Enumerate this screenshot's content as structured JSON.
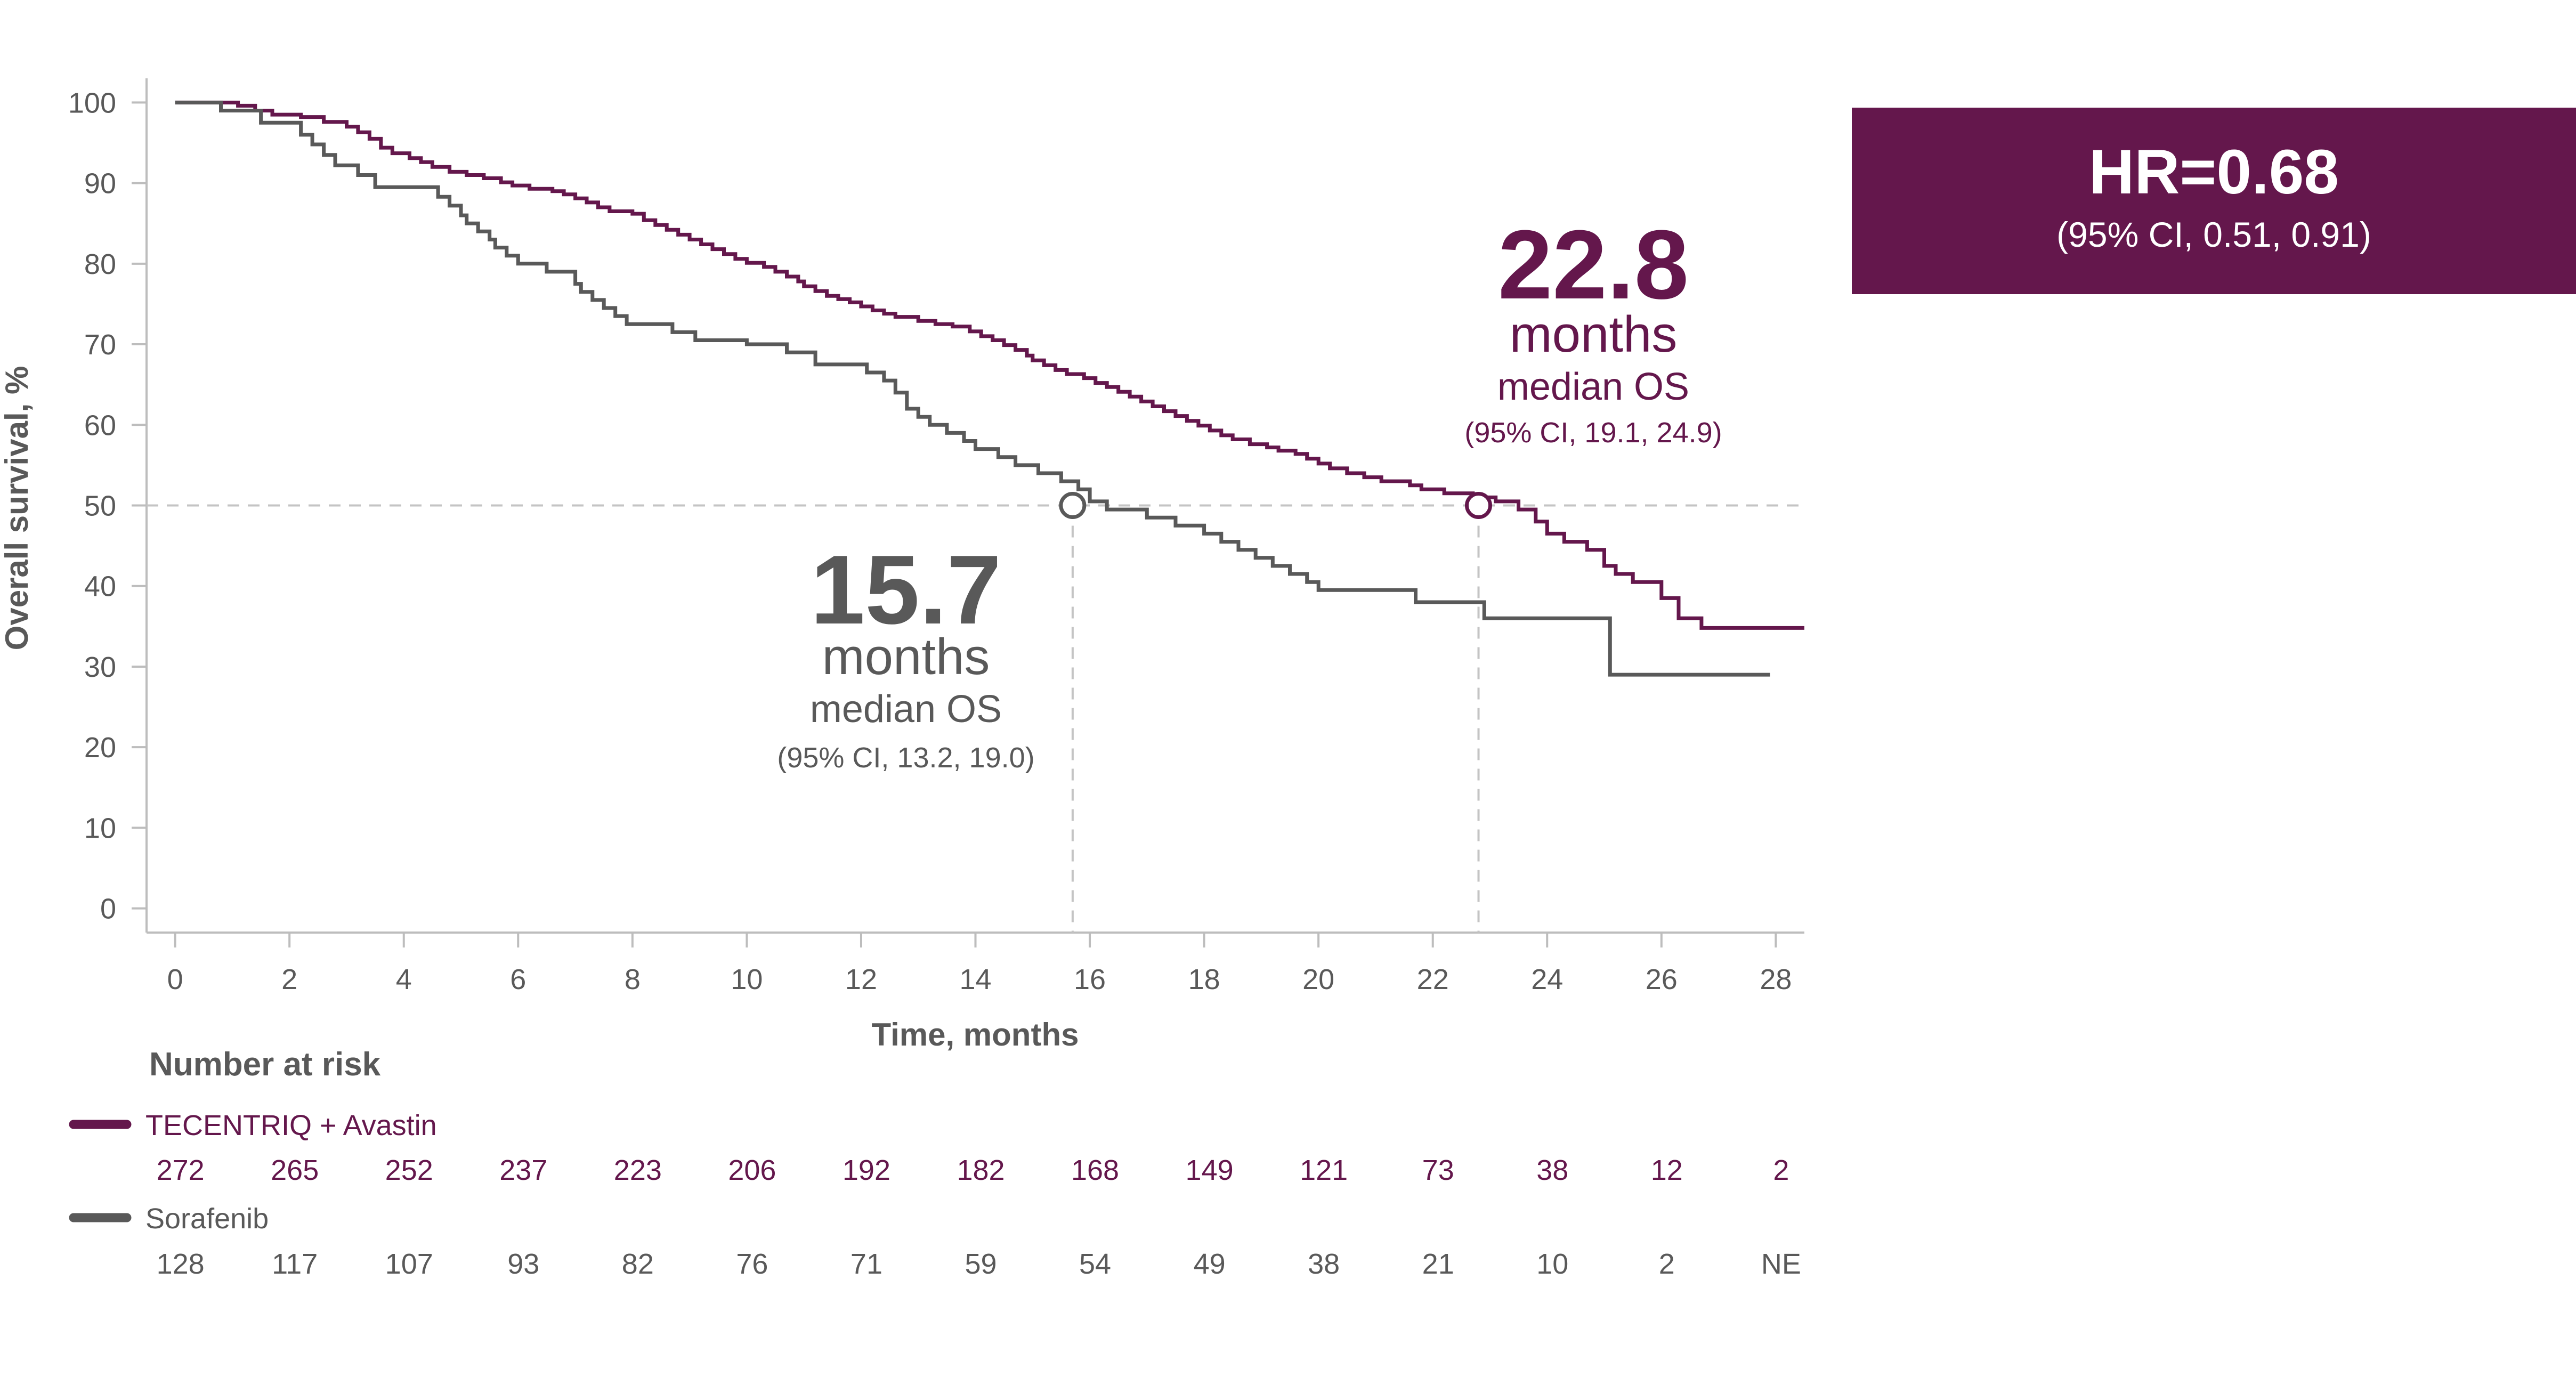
{
  "colors": {
    "tecentriq": "#64174c",
    "sorafenib": "#595959",
    "axis": "#bdbdbd",
    "tick_text": "#595959",
    "guide": "#c4c4c4"
  },
  "hr_box": {
    "value": "HR=0.68",
    "ci": "(95% CI, 0.51, 0.91)"
  },
  "chart_data": {
    "type": "line",
    "subtype": "kaplan-meier step",
    "xlabel": "Time, months",
    "ylabel": "Overall survival, %",
    "xlim": [
      -0.5,
      28.5
    ],
    "ylim": [
      -3,
      103
    ],
    "xticks": [
      0,
      2,
      4,
      6,
      8,
      10,
      12,
      14,
      16,
      18,
      20,
      22,
      24,
      26,
      28
    ],
    "yticks": [
      0,
      10,
      20,
      30,
      40,
      50,
      60,
      70,
      80,
      90,
      100
    ],
    "grid": false,
    "median_reference_line": 50,
    "series": [
      {
        "name": "TECENTRIQ + Avastin",
        "color": "#64174c",
        "points": [
          [
            0,
            100
          ],
          [
            0.7,
            100
          ],
          [
            1.1,
            99.6
          ],
          [
            1.4,
            99
          ],
          [
            1.7,
            98.5
          ],
          [
            2.2,
            98.2
          ],
          [
            2.6,
            97.6
          ],
          [
            3.0,
            97
          ],
          [
            3.2,
            96.3
          ],
          [
            3.4,
            95.5
          ],
          [
            3.6,
            94.4
          ],
          [
            3.8,
            93.7
          ],
          [
            4.1,
            93.1
          ],
          [
            4.3,
            92.6
          ],
          [
            4.5,
            92
          ],
          [
            4.8,
            91.4
          ],
          [
            5.1,
            91
          ],
          [
            5.4,
            90.6
          ],
          [
            5.7,
            90.1
          ],
          [
            5.9,
            89.7
          ],
          [
            6.2,
            89.3
          ],
          [
            6.6,
            89
          ],
          [
            6.8,
            88.6
          ],
          [
            7.0,
            88.1
          ],
          [
            7.2,
            87.6
          ],
          [
            7.4,
            87
          ],
          [
            7.6,
            86.5
          ],
          [
            8.0,
            86.2
          ],
          [
            8.2,
            85.4
          ],
          [
            8.4,
            84.8
          ],
          [
            8.6,
            84.2
          ],
          [
            8.8,
            83.6
          ],
          [
            9.0,
            83
          ],
          [
            9.2,
            82.4
          ],
          [
            9.4,
            81.8
          ],
          [
            9.6,
            81.2
          ],
          [
            9.8,
            80.6
          ],
          [
            10.0,
            80.1
          ],
          [
            10.3,
            79.6
          ],
          [
            10.5,
            79
          ],
          [
            10.7,
            78.4
          ],
          [
            10.9,
            77.8
          ],
          [
            11.0,
            77.2
          ],
          [
            11.2,
            76.6
          ],
          [
            11.4,
            76
          ],
          [
            11.6,
            75.6
          ],
          [
            11.8,
            75.2
          ],
          [
            12.0,
            74.7
          ],
          [
            12.2,
            74.2
          ],
          [
            12.4,
            73.8
          ],
          [
            12.6,
            73.4
          ],
          [
            13.0,
            72.9
          ],
          [
            13.3,
            72.5
          ],
          [
            13.6,
            72.2
          ],
          [
            13.9,
            71.6
          ],
          [
            14.1,
            71
          ],
          [
            14.3,
            70.5
          ],
          [
            14.5,
            69.9
          ],
          [
            14.7,
            69.3
          ],
          [
            14.9,
            68.6
          ],
          [
            15.0,
            68
          ],
          [
            15.2,
            67.4
          ],
          [
            15.4,
            66.8
          ],
          [
            15.6,
            66.3
          ],
          [
            15.9,
            65.8
          ],
          [
            16.1,
            65.2
          ],
          [
            16.3,
            64.7
          ],
          [
            16.5,
            64.1
          ],
          [
            16.7,
            63.5
          ],
          [
            16.9,
            62.9
          ],
          [
            17.1,
            62.3
          ],
          [
            17.3,
            61.7
          ],
          [
            17.5,
            61.1
          ],
          [
            17.7,
            60.5
          ],
          [
            17.9,
            59.9
          ],
          [
            18.1,
            59.3
          ],
          [
            18.3,
            58.7
          ],
          [
            18.5,
            58.2
          ],
          [
            18.8,
            57.6
          ],
          [
            19.1,
            57.2
          ],
          [
            19.3,
            56.8
          ],
          [
            19.6,
            56.4
          ],
          [
            19.8,
            55.8
          ],
          [
            20.0,
            55.2
          ],
          [
            20.2,
            54.6
          ],
          [
            20.5,
            54
          ],
          [
            20.8,
            53.5
          ],
          [
            21.1,
            53
          ],
          [
            21.6,
            52.5
          ],
          [
            21.8,
            52
          ],
          [
            22.2,
            51.5
          ],
          [
            22.7,
            51
          ],
          [
            23.1,
            50.5
          ],
          [
            23.5,
            49.5
          ],
          [
            23.8,
            48
          ],
          [
            24.0,
            46.5
          ],
          [
            24.3,
            45.5
          ],
          [
            24.7,
            44.5
          ],
          [
            25.0,
            42.5
          ],
          [
            25.2,
            41.5
          ],
          [
            25.5,
            40.5
          ],
          [
            26.0,
            38.5
          ],
          [
            26.3,
            36
          ],
          [
            26.7,
            34.8
          ],
          [
            27.5,
            34.8
          ],
          [
            28.5,
            34.8
          ]
        ],
        "median": 22.8,
        "median_value": "22.8",
        "median_unit": "months",
        "median_label": "median OS",
        "median_ci": "(95% CI, 19.1, 24.9)"
      },
      {
        "name": "Sorafenib",
        "color": "#595959",
        "points": [
          [
            0,
            100
          ],
          [
            0.8,
            99
          ],
          [
            1.5,
            97.5
          ],
          [
            2.2,
            96
          ],
          [
            2.4,
            94.8
          ],
          [
            2.6,
            93.5
          ],
          [
            2.8,
            92.2
          ],
          [
            3.2,
            91
          ],
          [
            3.5,
            89.5
          ],
          [
            4.6,
            88.3
          ],
          [
            4.8,
            87.2
          ],
          [
            5.0,
            86
          ],
          [
            5.1,
            85
          ],
          [
            5.3,
            84
          ],
          [
            5.5,
            83
          ],
          [
            5.6,
            82
          ],
          [
            5.8,
            81
          ],
          [
            6.0,
            80
          ],
          [
            6.5,
            79
          ],
          [
            7.0,
            77.5
          ],
          [
            7.1,
            76.5
          ],
          [
            7.3,
            75.5
          ],
          [
            7.5,
            74.5
          ],
          [
            7.7,
            73.5
          ],
          [
            7.9,
            72.5
          ],
          [
            8.7,
            71.5
          ],
          [
            9.1,
            70.5
          ],
          [
            10.0,
            70
          ],
          [
            10.7,
            69
          ],
          [
            11.2,
            67.5
          ],
          [
            12.1,
            66.5
          ],
          [
            12.4,
            65.5
          ],
          [
            12.6,
            64
          ],
          [
            12.8,
            62
          ],
          [
            13.0,
            61
          ],
          [
            13.2,
            60
          ],
          [
            13.5,
            59
          ],
          [
            13.8,
            58
          ],
          [
            14.0,
            57
          ],
          [
            14.4,
            56
          ],
          [
            14.7,
            55
          ],
          [
            15.1,
            54
          ],
          [
            15.5,
            53
          ],
          [
            15.8,
            52
          ],
          [
            16.0,
            50.5
          ],
          [
            16.3,
            49.5
          ],
          [
            17.0,
            48.5
          ],
          [
            17.5,
            47.5
          ],
          [
            18.0,
            46.5
          ],
          [
            18.3,
            45.5
          ],
          [
            18.6,
            44.5
          ],
          [
            18.9,
            43.5
          ],
          [
            19.2,
            42.5
          ],
          [
            19.5,
            41.5
          ],
          [
            19.8,
            40.5
          ],
          [
            20.0,
            39.5
          ],
          [
            21.7,
            38
          ],
          [
            22.9,
            36
          ],
          [
            25.1,
            36
          ],
          [
            25.1,
            29
          ],
          [
            25.9,
            29
          ],
          [
            27.9,
            29
          ]
        ],
        "median": 15.7,
        "median_value": "15.7",
        "median_unit": "months",
        "median_label": "median OS",
        "median_ci": "(95% CI, 13.2, 19.0)"
      }
    ],
    "risk_table": {
      "title": "Number at risk",
      "times": [
        0,
        2,
        4,
        6,
        8,
        10,
        12,
        14,
        16,
        18,
        20,
        22,
        24,
        26,
        28
      ],
      "rows": [
        {
          "name": "TECENTRIQ + Avastin",
          "color": "#64174c",
          "values": [
            "272",
            "265",
            "252",
            "237",
            "223",
            "206",
            "192",
            "182",
            "168",
            "149",
            "121",
            "73",
            "38",
            "12",
            "2"
          ]
        },
        {
          "name": "Sorafenib",
          "color": "#595959",
          "values": [
            "128",
            "117",
            "107",
            "93",
            "82",
            "76",
            "71",
            "59",
            "54",
            "49",
            "38",
            "21",
            "10",
            "2",
            "NE"
          ]
        }
      ]
    }
  }
}
